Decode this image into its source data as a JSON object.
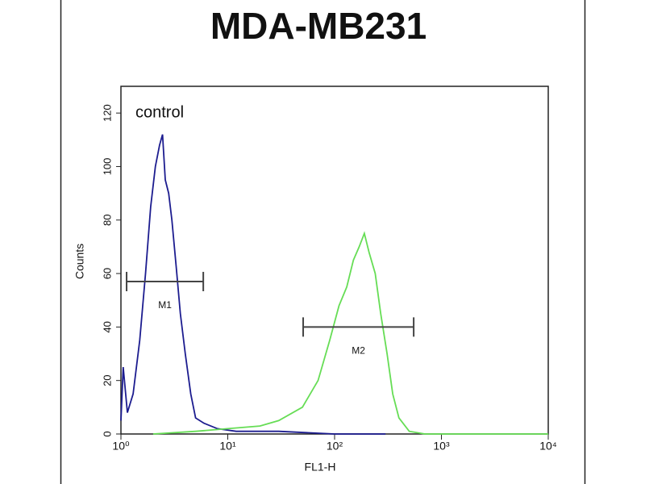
{
  "chart_data": {
    "type": "line",
    "title": "MDA-MB231",
    "x_label": "FL1-H",
    "y_label": "Counts",
    "x_scale": "log",
    "xlim": [
      1,
      10000
    ],
    "ylim": [
      0,
      130
    ],
    "xticks": [
      {
        "value": 1,
        "label": "10⁰"
      },
      {
        "value": 10,
        "label": "10¹"
      },
      {
        "value": 100,
        "label": "10²"
      },
      {
        "value": 1000,
        "label": "10³"
      },
      {
        "value": 10000,
        "label": "10⁴"
      }
    ],
    "yticks": [
      0,
      20,
      40,
      60,
      80,
      100,
      120
    ],
    "annotation": "control",
    "series": [
      {
        "name": "control",
        "color": "#1c1c8f",
        "x": [
          1.0,
          1.05,
          1.15,
          1.3,
          1.5,
          1.7,
          1.9,
          2.1,
          2.3,
          2.45,
          2.6,
          2.8,
          3.0,
          3.3,
          3.6,
          4.0,
          4.5,
          5.0,
          6,
          8,
          12,
          30,
          100,
          300
        ],
        "values": [
          5,
          25,
          8,
          15,
          35,
          60,
          85,
          100,
          108,
          112,
          95,
          90,
          80,
          62,
          45,
          30,
          15,
          6,
          4,
          2,
          1,
          1,
          0,
          0
        ]
      },
      {
        "name": "MDA-MB231",
        "color": "#66dd55",
        "x": [
          2,
          5,
          10,
          20,
          30,
          50,
          70,
          90,
          110,
          130,
          150,
          170,
          190,
          210,
          240,
          270,
          310,
          350,
          400,
          500,
          700,
          10000
        ],
        "values": [
          0,
          1,
          2,
          3,
          5,
          10,
          20,
          35,
          48,
          55,
          65,
          70,
          75,
          68,
          60,
          45,
          30,
          15,
          6,
          1,
          0,
          0
        ]
      }
    ],
    "gates": [
      {
        "label": "M1",
        "x": [
          1.13,
          5.9
        ],
        "y": 57
      },
      {
        "label": "M2",
        "x": [
          50.8,
          550
        ],
        "y": 40
      }
    ]
  }
}
